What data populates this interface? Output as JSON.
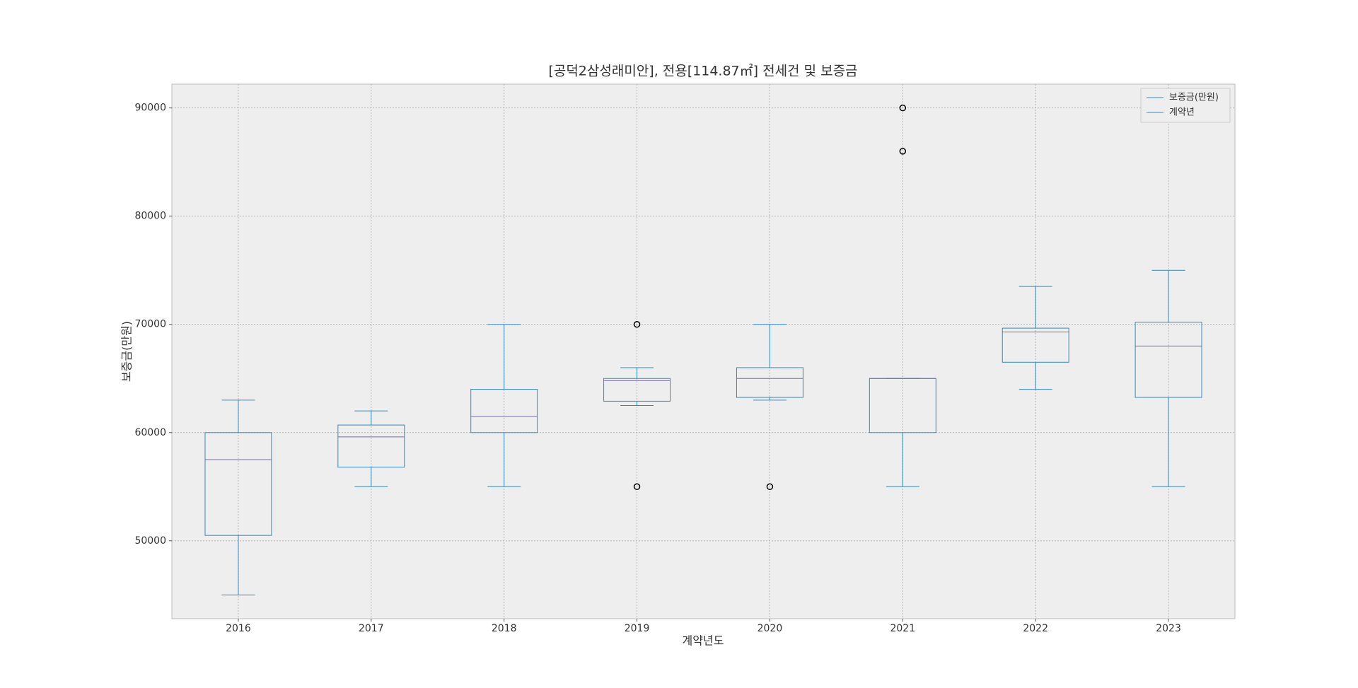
{
  "chart_data": {
    "type": "boxplot",
    "title": "[공덕2삼성래미안], 전용[114.87㎡] 전세건 및 보증금",
    "x_label": "계약년도",
    "y_label": "보증금(만원)",
    "categories": [
      "2016",
      "2017",
      "2018",
      "2019",
      "2020",
      "2021",
      "2022",
      "2023"
    ],
    "boxes": [
      {
        "low": 45000,
        "q1": 50500,
        "median": 57500,
        "q3": 60000,
        "high": 63000,
        "outliers": []
      },
      {
        "low": 55000,
        "q1": 56800,
        "median": 59600,
        "q3": 60700,
        "high": 62000,
        "outliers": []
      },
      {
        "low": 55000,
        "q1": 60000,
        "median": 61500,
        "q3": 64000,
        "high": 70000,
        "outliers": []
      },
      {
        "low": 62500,
        "q1": 62900,
        "median": 64800,
        "q3": 65000,
        "high": 66000,
        "outliers": [
          70000,
          55000
        ]
      },
      {
        "low": 63000,
        "q1": 63250,
        "median": 65000,
        "q3": 66000,
        "high": 70000,
        "outliers": [
          55000
        ]
      },
      {
        "low": 55000,
        "q1": 60000,
        "median": 65000,
        "q3": 65000,
        "high": 65000,
        "outliers": [
          86000,
          90000
        ]
      },
      {
        "low": 64000,
        "q1": 66500,
        "median": 69300,
        "q3": 69650,
        "high": 73500,
        "outliers": []
      },
      {
        "low": 55000,
        "q1": 63250,
        "median": 68000,
        "q3": 70200,
        "high": 75000,
        "outliers": []
      }
    ],
    "color": "#348abd",
    "median_color": "#7a68a6",
    "legend": {
      "entries": [
        "보증금(만원)",
        "계약년"
      ],
      "loc": "upper right"
    },
    "ylim": [
      42800,
      92200
    ],
    "yticks": [
      50000,
      60000,
      70000,
      80000,
      90000
    ],
    "grid": true
  }
}
